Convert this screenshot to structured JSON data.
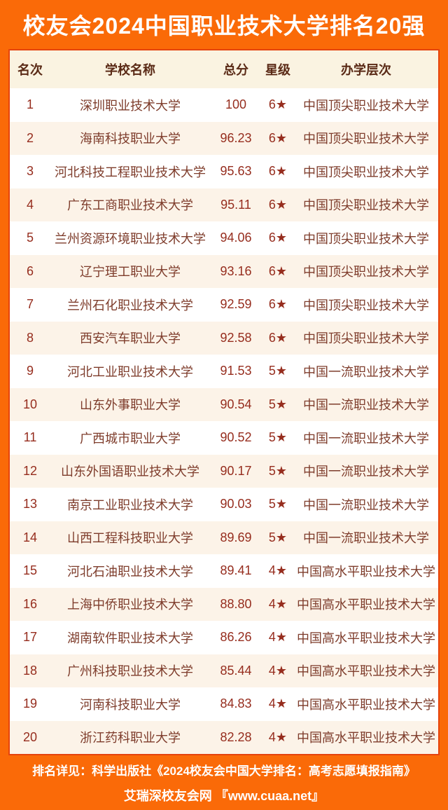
{
  "title": "校友会2024中国职业技术大学排名20强",
  "colors": {
    "orange": "#FA6A08",
    "panel_border": "#E5430D",
    "header_bg": "#FAF3E1",
    "alt_row_bg": "#FCF3E8",
    "header_text": "#5A2A16",
    "body_text": "#7E3C2B",
    "number_red": "#962D1E",
    "title_text": "#FFFFFF"
  },
  "table": {
    "headers": {
      "rank": "名次",
      "name": "学校名称",
      "score": "总分",
      "star": "星级",
      "level": "办学层次"
    },
    "rows": [
      {
        "rank": "1",
        "name": "深圳职业技术大学",
        "score": "100",
        "star": "6★",
        "level": "中国顶尖职业技术大学"
      },
      {
        "rank": "2",
        "name": "海南科技职业大学",
        "score": "96.23",
        "star": "6★",
        "level": "中国顶尖职业技术大学"
      },
      {
        "rank": "3",
        "name": "河北科技工程职业技术大学",
        "score": "95.63",
        "star": "6★",
        "level": "中国顶尖职业技术大学"
      },
      {
        "rank": "4",
        "name": "广东工商职业技术大学",
        "score": "95.11",
        "star": "6★",
        "level": "中国顶尖职业技术大学"
      },
      {
        "rank": "5",
        "name": "兰州资源环境职业技术大学",
        "score": "94.06",
        "star": "6★",
        "level": "中国顶尖职业技术大学"
      },
      {
        "rank": "6",
        "name": "辽宁理工职业大学",
        "score": "93.16",
        "star": "6★",
        "level": "中国顶尖职业技术大学"
      },
      {
        "rank": "7",
        "name": "兰州石化职业技术大学",
        "score": "92.59",
        "star": "6★",
        "level": "中国顶尖职业技术大学"
      },
      {
        "rank": "8",
        "name": "西安汽车职业大学",
        "score": "92.58",
        "star": "6★",
        "level": "中国顶尖职业技术大学"
      },
      {
        "rank": "9",
        "name": "河北工业职业技术大学",
        "score": "91.53",
        "star": "5★",
        "level": "中国一流职业技术大学"
      },
      {
        "rank": "10",
        "name": "山东外事职业大学",
        "score": "90.54",
        "star": "5★",
        "level": "中国一流职业技术大学"
      },
      {
        "rank": "11",
        "name": "广西城市职业大学",
        "score": "90.52",
        "star": "5★",
        "level": "中国一流职业技术大学"
      },
      {
        "rank": "12",
        "name": "山东外国语职业技术大学",
        "score": "90.17",
        "star": "5★",
        "level": "中国一流职业技术大学"
      },
      {
        "rank": "13",
        "name": "南京工业职业技术大学",
        "score": "90.03",
        "star": "5★",
        "level": "中国一流职业技术大学"
      },
      {
        "rank": "14",
        "name": "山西工程科技职业大学",
        "score": "89.69",
        "star": "5★",
        "level": "中国一流职业技术大学"
      },
      {
        "rank": "15",
        "name": "河北石油职业技术大学",
        "score": "89.41",
        "star": "4★",
        "level": "中国高水平职业技术大学"
      },
      {
        "rank": "16",
        "name": "上海中侨职业技术大学",
        "score": "88.80",
        "star": "4★",
        "level": "中国高水平职业技术大学"
      },
      {
        "rank": "17",
        "name": "湖南软件职业技术大学",
        "score": "86.26",
        "star": "4★",
        "level": "中国高水平职业技术大学"
      },
      {
        "rank": "18",
        "name": "广州科技职业技术大学",
        "score": "85.44",
        "star": "4★",
        "level": "中国高水平职业技术大学"
      },
      {
        "rank": "19",
        "name": "河南科技职业大学",
        "score": "84.83",
        "star": "4★",
        "level": "中国高水平职业技术大学"
      },
      {
        "rank": "20",
        "name": "浙江药科职业大学",
        "score": "82.28",
        "star": "4★",
        "level": "中国高水平职业技术大学"
      }
    ]
  },
  "footer": {
    "line1": "排名详见：科学出版社《2024校友会中国大学排名：高考志愿填报指南》",
    "line2": "艾瑞深校友会网 『www.cuaa.net』"
  }
}
